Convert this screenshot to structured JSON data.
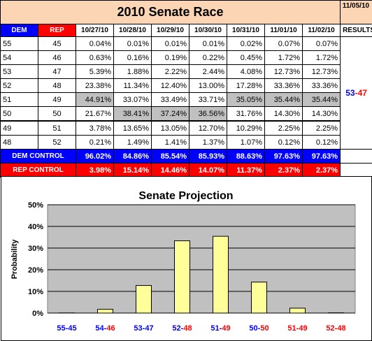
{
  "sheet": {
    "title": "2010 Senate Race",
    "date_stamp": "11/05/10",
    "headers": [
      "DEM",
      "REP",
      "10/27/10",
      "10/28/10",
      "10/29/10",
      "10/30/10",
      "10/31/10",
      "11/01/10",
      "11/02/10",
      "RESULTS"
    ],
    "rows": [
      {
        "dem": "55",
        "rep": "45",
        "values": [
          "0.04%",
          "0.01%",
          "0.01%",
          "0.01%",
          "0.02%",
          "0.07%",
          "0.07%"
        ]
      },
      {
        "dem": "54",
        "rep": "46",
        "values": [
          "0.63%",
          "0.16%",
          "0.19%",
          "0.22%",
          "0.45%",
          "1.72%",
          "1.72%"
        ]
      },
      {
        "dem": "53",
        "rep": "47",
        "values": [
          "5.39%",
          "1.88%",
          "2.22%",
          "2.44%",
          "4.08%",
          "12.73%",
          "12.73%"
        ]
      },
      {
        "dem": "52",
        "rep": "48",
        "values": [
          "23.38%",
          "11.34%",
          "12.40%",
          "13.00%",
          "17.28%",
          "33.36%",
          "33.36%"
        ]
      },
      {
        "dem": "51",
        "rep": "49",
        "values": [
          "44.91%",
          "33.07%",
          "33.49%",
          "33.71%",
          "35.05%",
          "35.44%",
          "35.44%"
        ]
      },
      {
        "dem": "50",
        "rep": "50",
        "values": [
          "21.67%",
          "38.41%",
          "37.24%",
          "36.56%",
          "31.76%",
          "14.30%",
          "14.30%"
        ]
      },
      {
        "dem": "49",
        "rep": "51",
        "values": [
          "3.78%",
          "13.65%",
          "13.05%",
          "12.70%",
          "10.29%",
          "2.25%",
          "2.25%"
        ]
      },
      {
        "dem": "48",
        "rep": "52",
        "values": [
          "0.21%",
          "1.49%",
          "1.41%",
          "1.37%",
          "1.07%",
          "0.12%",
          "0.12%"
        ]
      }
    ],
    "result": {
      "dem": "53",
      "sep": "-",
      "rep": "47"
    },
    "dem_control": {
      "label": "DEM CONTROL",
      "values": [
        "96.02%",
        "84.86%",
        "85.54%",
        "85.93%",
        "88.63%",
        "97.63%",
        "97.63%"
      ]
    },
    "rep_control": {
      "label": "REP CONTROL",
      "values": [
        "3.98%",
        "15.14%",
        "14.46%",
        "14.07%",
        "11.37%",
        "2.37%",
        "2.37%"
      ]
    },
    "colors": {
      "dem": "#0000ff",
      "rep": "#ff0000",
      "title_bg": "#fcd5b4",
      "highlight": "#c0c0c0"
    }
  },
  "chart_data": {
    "type": "bar",
    "title": "Senate Projection",
    "ylabel": "Probability",
    "xlabel": "",
    "ylim": [
      0,
      50
    ],
    "yticks": [
      "0%",
      "10%",
      "20%",
      "30%",
      "40%",
      "50%"
    ],
    "categories": [
      {
        "dem": "55",
        "rep": "45"
      },
      {
        "dem": "54",
        "rep": "46"
      },
      {
        "dem": "53",
        "rep": "47"
      },
      {
        "dem": "52",
        "rep": "48"
      },
      {
        "dem": "51",
        "rep": "49"
      },
      {
        "dem": "50",
        "rep": "50"
      },
      {
        "rep": "51",
        "dem": "49",
        "rep_first": true
      },
      {
        "rep": "52",
        "dem": "48",
        "rep_first": true
      }
    ],
    "values": [
      0.07,
      1.72,
      12.73,
      33.36,
      35.44,
      14.3,
      2.25,
      0.12
    ],
    "grid": true,
    "colors": {
      "bar": "#ffff99",
      "plot_bg": "#c0c0c0",
      "dem": "#0000ff",
      "rep": "#ff0000"
    }
  }
}
